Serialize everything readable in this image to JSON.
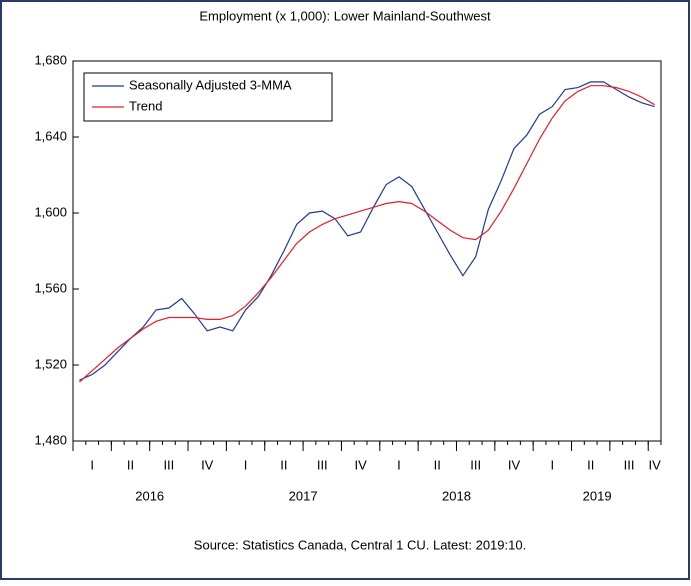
{
  "chart_data": {
    "type": "line",
    "title": "Employment (x 1,000): Lower Mainland-Southwest",
    "note": "Source:  Statistics Canada, Central 1 CU. Latest: 2019:10.",
    "quarters": [
      "I",
      "II",
      "III",
      "IV",
      "I",
      "II",
      "III",
      "IV",
      "I",
      "II",
      "III",
      "IV",
      "I",
      "II",
      "III",
      "IV"
    ],
    "years": [
      "2016",
      "2017",
      "2018",
      "2019"
    ],
    "ylim": [
      1480,
      1680
    ],
    "yticks": [
      {
        "value": 1480,
        "label": "1,480"
      },
      {
        "value": 1520,
        "label": "1,520"
      },
      {
        "value": 1560,
        "label": "1,560"
      },
      {
        "value": 1600,
        "label": "1,600"
      },
      {
        "value": 1640,
        "label": "1,640"
      },
      {
        "value": 1680,
        "label": "1,680"
      }
    ],
    "legend": "upper-left",
    "series": [
      {
        "name": "Seasonally Adjusted 3-MMA",
        "color": "#1f3a93",
        "values": [
          1512,
          1515,
          1520,
          1527,
          1534,
          1540,
          1549,
          1550,
          1555,
          1547,
          1538,
          1540,
          1538,
          1549,
          1556,
          1567,
          1580,
          1594,
          1600,
          1601,
          1597,
          1588,
          1590,
          1603,
          1615,
          1619,
          1614,
          1602,
          1590,
          1578,
          1567,
          1577,
          1602,
          1617,
          1634,
          1641,
          1652,
          1656,
          1665,
          1666,
          1669,
          1669,
          1665,
          1661,
          1658,
          1656
        ]
      },
      {
        "name": "Trend",
        "color": "#e0202a",
        "values": [
          1511,
          1517,
          1523,
          1529,
          1534,
          1539,
          1543,
          1545,
          1545,
          1545,
          1544,
          1544,
          1546,
          1551,
          1558,
          1566,
          1575,
          1584,
          1590,
          1594,
          1597,
          1599,
          1601,
          1603,
          1605,
          1606,
          1605,
          1601,
          1596,
          1591,
          1587,
          1586,
          1591,
          1601,
          1613,
          1626,
          1639,
          1650,
          1659,
          1664,
          1667,
          1667,
          1666,
          1664,
          1661,
          1657
        ]
      }
    ]
  }
}
